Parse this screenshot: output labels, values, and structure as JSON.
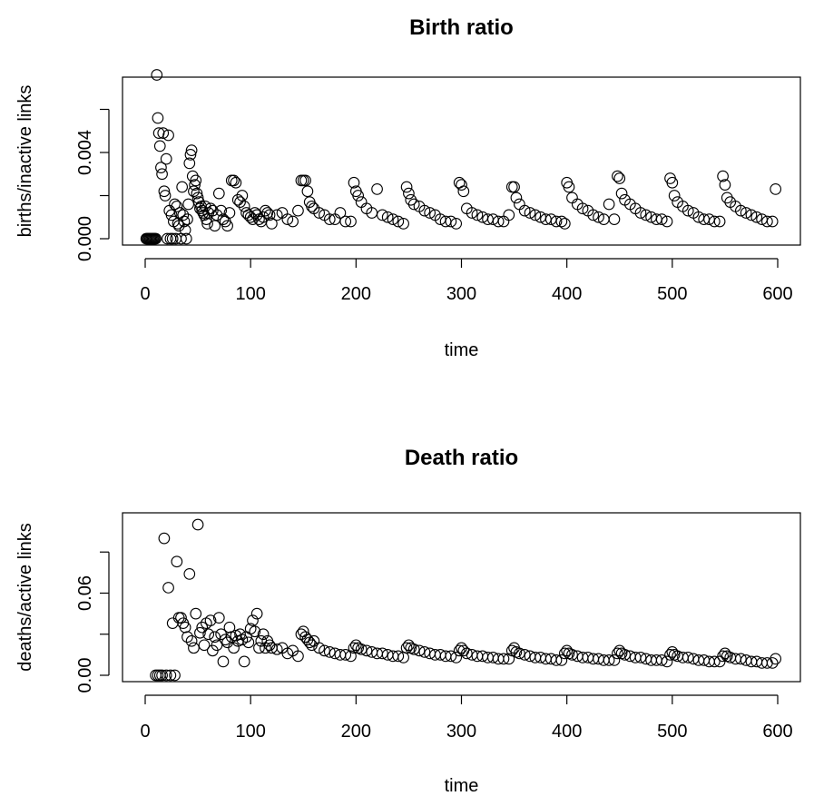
{
  "chart_data": [
    {
      "type": "scatter",
      "title": "Birth ratio",
      "xlabel": "time",
      "ylabel": "births/inactive links",
      "xlim": [
        0,
        600
      ],
      "ylim": [
        0,
        0.0072
      ],
      "xticks": [
        0,
        100,
        200,
        300,
        400,
        500,
        600
      ],
      "xtick_labels": [
        "0",
        "100",
        "200",
        "300",
        "400",
        "500",
        "600"
      ],
      "yticks": [
        0.0,
        0.002,
        0.004,
        0.006
      ],
      "ytick_labels": [
        "0.000",
        "",
        "0.004",
        ""
      ],
      "grid": false,
      "marker": "open-circle",
      "x": [
        1,
        2,
        3,
        4,
        5,
        6,
        7,
        8,
        9,
        10,
        11,
        12,
        13,
        14,
        15,
        16,
        17,
        18,
        19,
        20,
        21,
        22,
        23,
        24,
        25,
        26,
        27,
        28,
        29,
        30,
        31,
        32,
        33,
        34,
        35,
        36,
        37,
        38,
        39,
        40,
        41,
        42,
        43,
        44,
        45,
        46,
        47,
        48,
        49,
        50,
        51,
        52,
        53,
        54,
        55,
        56,
        57,
        58,
        59,
        60,
        62,
        64,
        66,
        68,
        70,
        72,
        74,
        76,
        78,
        80,
        82,
        84,
        86,
        88,
        90,
        92,
        94,
        96,
        98,
        100,
        102,
        104,
        106,
        108,
        110,
        112,
        114,
        116,
        118,
        120,
        125,
        130,
        135,
        140,
        145,
        148,
        150,
        152,
        154,
        156,
        158,
        160,
        165,
        170,
        175,
        180,
        185,
        190,
        195,
        198,
        200,
        202,
        205,
        210,
        215,
        220,
        225,
        230,
        235,
        240,
        245,
        248,
        250,
        252,
        255,
        260,
        265,
        270,
        275,
        280,
        285,
        290,
        295,
        298,
        300,
        302,
        305,
        310,
        315,
        320,
        325,
        330,
        335,
        340,
        345,
        348,
        350,
        352,
        355,
        360,
        365,
        370,
        375,
        380,
        385,
        390,
        395,
        398,
        400,
        402,
        405,
        410,
        415,
        420,
        425,
        430,
        435,
        440,
        445,
        448,
        450,
        452,
        455,
        460,
        465,
        470,
        475,
        480,
        485,
        490,
        495,
        498,
        500,
        502,
        505,
        510,
        515,
        520,
        525,
        530,
        535,
        540,
        545,
        548,
        550,
        552,
        555,
        560,
        565,
        570,
        575,
        580,
        585,
        590,
        595,
        598
      ],
      "y": [
        0,
        0,
        0,
        0,
        0,
        0,
        0,
        0,
        0,
        0,
        0.0076,
        0.0056,
        0.0049,
        0.0043,
        0.0033,
        0.003,
        0.0049,
        0.0022,
        0.002,
        0.0037,
        0,
        0.0048,
        0.0013,
        0,
        0.0011,
        0,
        0.0008,
        0.0016,
        0,
        0.0015,
        0.0007,
        0.0006,
        0.0012,
        0,
        0.0024,
        0.0011,
        0.0008,
        0.0004,
        0,
        0.0009,
        0.0016,
        0.0035,
        0.0039,
        0.0041,
        0.0029,
        0.0022,
        0.0025,
        0.0027,
        0.0021,
        0.0019,
        0.0017,
        0.0014,
        0.0015,
        0.0013,
        0.0012,
        0.0011,
        0.0015,
        0.0009,
        0.0007,
        0.0012,
        0.0014,
        0.0013,
        0.0006,
        0.0011,
        0.0021,
        0.0013,
        0.0009,
        0.0008,
        0.0006,
        0.0012,
        0.0027,
        0.0027,
        0.0026,
        0.0018,
        0.0017,
        0.002,
        0.0015,
        0.0012,
        0.0011,
        0.001,
        0.0009,
        0.0012,
        0.0011,
        0.0009,
        0.0008,
        0.001,
        0.0013,
        0.0012,
        0.0011,
        0.0007,
        0.0011,
        0.0012,
        0.0009,
        0.0008,
        0.0013,
        0.0027,
        0.0027,
        0.0027,
        0.0022,
        0.0017,
        0.0015,
        0.0014,
        0.0012,
        0.0011,
        0.0009,
        0.0009,
        0.0012,
        0.0008,
        0.0008,
        0.0026,
        0.0022,
        0.002,
        0.0017,
        0.0014,
        0.0012,
        0.0023,
        0.0011,
        0.001,
        0.0009,
        0.0008,
        0.0007,
        0.0024,
        0.0021,
        0.0018,
        0.0016,
        0.0015,
        0.0013,
        0.0012,
        0.0011,
        0.0009,
        0.0008,
        0.0008,
        0.0007,
        0.0026,
        0.0025,
        0.0022,
        0.0014,
        0.0012,
        0.0011,
        0.001,
        0.0009,
        0.0009,
        0.0008,
        0.0008,
        0.0011,
        0.0024,
        0.0024,
        0.0019,
        0.0016,
        0.0013,
        0.0012,
        0.0011,
        0.001,
        0.0009,
        0.0009,
        0.0008,
        0.0008,
        0.0007,
        0.0026,
        0.0024,
        0.0019,
        0.0016,
        0.0014,
        0.0013,
        0.0011,
        0.001,
        0.0009,
        0.0016,
        0.0009,
        0.0029,
        0.0028,
        0.0021,
        0.0018,
        0.0016,
        0.0014,
        0.0012,
        0.0011,
        0.001,
        0.0009,
        0.0009,
        0.0008,
        0.0028,
        0.0026,
        0.002,
        0.0017,
        0.0015,
        0.0013,
        0.0012,
        0.001,
        0.0009,
        0.0009,
        0.0008,
        0.0008,
        0.0029,
        0.0025,
        0.0019,
        0.0017,
        0.0015,
        0.0013,
        0.0012,
        0.0011,
        0.001,
        0.0009,
        0.0008,
        0.0008,
        0.0023
      ]
    },
    {
      "type": "scatter",
      "title": "Death ratio",
      "xlabel": "time",
      "ylabel": "deaths/active links",
      "xlim": [
        0,
        600
      ],
      "ylim": [
        0,
        0.114
      ],
      "xticks": [
        0,
        100,
        200,
        300,
        400,
        500,
        600
      ],
      "xtick_labels": [
        "0",
        "100",
        "200",
        "300",
        "400",
        "500",
        "600"
      ],
      "yticks": [
        0.0,
        0.03,
        0.06,
        0.09
      ],
      "ytick_labels": [
        "0.00",
        "",
        "0.06",
        ""
      ],
      "grid": false,
      "marker": "open-circle",
      "x": [
        10,
        12,
        14,
        16,
        18,
        20,
        22,
        24,
        26,
        28,
        30,
        32,
        34,
        36,
        38,
        40,
        42,
        44,
        46,
        48,
        50,
        52,
        54,
        56,
        58,
        60,
        62,
        64,
        66,
        68,
        70,
        72,
        74,
        76,
        78,
        80,
        82,
        84,
        86,
        88,
        90,
        92,
        94,
        96,
        98,
        100,
        102,
        104,
        106,
        108,
        110,
        112,
        114,
        116,
        118,
        120,
        125,
        130,
        135,
        140,
        145,
        148,
        150,
        152,
        154,
        156,
        158,
        160,
        165,
        170,
        175,
        180,
        185,
        190,
        195,
        198,
        200,
        202,
        205,
        210,
        215,
        220,
        225,
        230,
        235,
        240,
        245,
        248,
        250,
        252,
        255,
        260,
        265,
        270,
        275,
        280,
        285,
        290,
        295,
        298,
        300,
        302,
        305,
        310,
        315,
        320,
        325,
        330,
        335,
        340,
        345,
        348,
        350,
        352,
        355,
        360,
        365,
        370,
        375,
        380,
        385,
        390,
        395,
        398,
        400,
        402,
        405,
        410,
        415,
        420,
        425,
        430,
        435,
        440,
        445,
        448,
        450,
        452,
        455,
        460,
        465,
        470,
        475,
        480,
        485,
        490,
        495,
        498,
        500,
        502,
        505,
        510,
        515,
        520,
        525,
        530,
        535,
        540,
        545,
        548,
        550,
        552,
        555,
        560,
        565,
        570,
        575,
        580,
        585,
        590,
        595,
        598
      ],
      "y": [
        0,
        0,
        0,
        0,
        0.1,
        0,
        0.064,
        0,
        0.038,
        0,
        0.083,
        0.042,
        0.042,
        0.038,
        0.035,
        0.028,
        0.074,
        0.025,
        0.02,
        0.045,
        0.11,
        0.031,
        0.035,
        0.022,
        0.038,
        0.03,
        0.04,
        0.018,
        0.028,
        0.022,
        0.042,
        0.03,
        0.01,
        0.026,
        0.024,
        0.035,
        0.028,
        0.02,
        0.029,
        0.025,
        0.03,
        0.026,
        0.01,
        0.028,
        0.024,
        0.034,
        0.04,
        0.032,
        0.045,
        0.02,
        0.025,
        0.03,
        0.02,
        0.025,
        0.022,
        0.02,
        0.019,
        0.02,
        0.016,
        0.018,
        0.014,
        0.03,
        0.032,
        0.028,
        0.026,
        0.024,
        0.022,
        0.025,
        0.02,
        0.018,
        0.017,
        0.016,
        0.015,
        0.015,
        0.014,
        0.02,
        0.022,
        0.02,
        0.019,
        0.018,
        0.017,
        0.016,
        0.016,
        0.015,
        0.014,
        0.014,
        0.013,
        0.02,
        0.022,
        0.02,
        0.019,
        0.018,
        0.017,
        0.016,
        0.015,
        0.015,
        0.014,
        0.014,
        0.013,
        0.018,
        0.02,
        0.018,
        0.016,
        0.015,
        0.014,
        0.014,
        0.013,
        0.013,
        0.012,
        0.012,
        0.012,
        0.018,
        0.02,
        0.017,
        0.016,
        0.015,
        0.014,
        0.013,
        0.013,
        0.012,
        0.012,
        0.011,
        0.011,
        0.016,
        0.018,
        0.016,
        0.015,
        0.014,
        0.013,
        0.013,
        0.012,
        0.012,
        0.011,
        0.011,
        0.011,
        0.016,
        0.018,
        0.016,
        0.015,
        0.014,
        0.013,
        0.013,
        0.012,
        0.011,
        0.011,
        0.011,
        0.01,
        0.015,
        0.017,
        0.015,
        0.014,
        0.013,
        0.013,
        0.012,
        0.011,
        0.011,
        0.01,
        0.01,
        0.01,
        0.014,
        0.016,
        0.014,
        0.013,
        0.012,
        0.012,
        0.011,
        0.01,
        0.01,
        0.009,
        0.009,
        0.009,
        0.012
      ]
    }
  ]
}
